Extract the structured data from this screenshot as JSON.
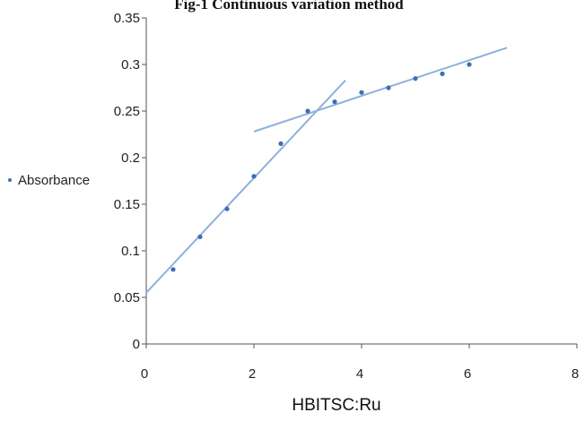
{
  "chart_data": {
    "type": "scatter",
    "title": "Fig-1 Continuous variation method",
    "xlabel": "HBITSC:Ru",
    "ylabel": "",
    "xlim": [
      0,
      8
    ],
    "ylim": [
      0,
      0.35
    ],
    "xticks": [
      "0",
      "2",
      "4",
      "6",
      "8"
    ],
    "yticks": [
      "0",
      "0.05",
      "0.1",
      "0.15",
      "0.2",
      "0.25",
      "0.3",
      "0.35"
    ],
    "legend": {
      "placement": "left",
      "entries": [
        "Absorbance"
      ]
    },
    "series": [
      {
        "name": "Absorbance",
        "x": [
          0.5,
          1.0,
          1.5,
          2.0,
          2.5,
          3.0,
          3.5,
          4.0,
          4.5,
          5.0,
          5.5,
          6.0
        ],
        "y": [
          0.08,
          0.115,
          0.145,
          0.18,
          0.215,
          0.25,
          0.26,
          0.27,
          0.275,
          0.285,
          0.29,
          0.3
        ]
      }
    ],
    "trendlines": [
      {
        "x": [
          0,
          3.7
        ],
        "y": [
          0.055,
          0.283
        ]
      },
      {
        "x": [
          2.0,
          6.7
        ],
        "y": [
          0.228,
          0.318
        ]
      }
    ],
    "colors": {
      "marker": "#3b6fb6",
      "line": "#8fb0da",
      "axis": "#555555"
    }
  }
}
